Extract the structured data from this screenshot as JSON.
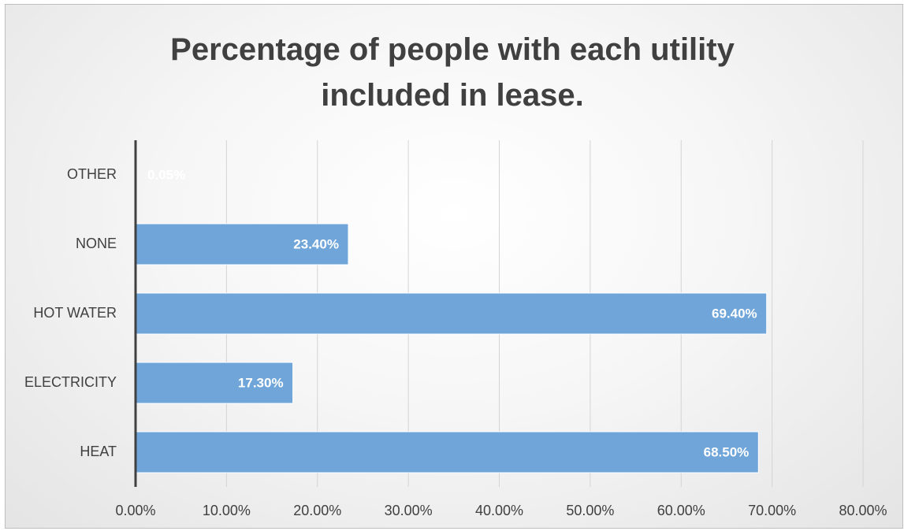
{
  "chart_data": {
    "type": "bar",
    "orientation": "horizontal",
    "title": "Percentage of people with each utility included in lease.",
    "categories": [
      "OTHER",
      "NONE",
      "HOT WATER",
      "ELECTRICITY",
      "HEAT"
    ],
    "values": [
      0.05,
      23.4,
      69.4,
      17.3,
      68.5
    ],
    "value_labels": [
      "0.05%",
      "23.40%",
      "69.40%",
      "17.30%",
      "68.50%"
    ],
    "color": "#6fa5d9",
    "xlim": [
      0,
      80
    ],
    "xticks": [
      {
        "value": 0,
        "label": "0.00%"
      },
      {
        "value": 10,
        "label": "10.00%"
      },
      {
        "value": 20,
        "label": "20.00%"
      },
      {
        "value": 30,
        "label": "30.00%"
      },
      {
        "value": 40,
        "label": "40.00%"
      },
      {
        "value": 50,
        "label": "50.00%"
      },
      {
        "value": 60,
        "label": "60.00%"
      },
      {
        "value": 70,
        "label": "70.00%"
      },
      {
        "value": 80,
        "label": "80.00%"
      }
    ],
    "grid": true
  }
}
